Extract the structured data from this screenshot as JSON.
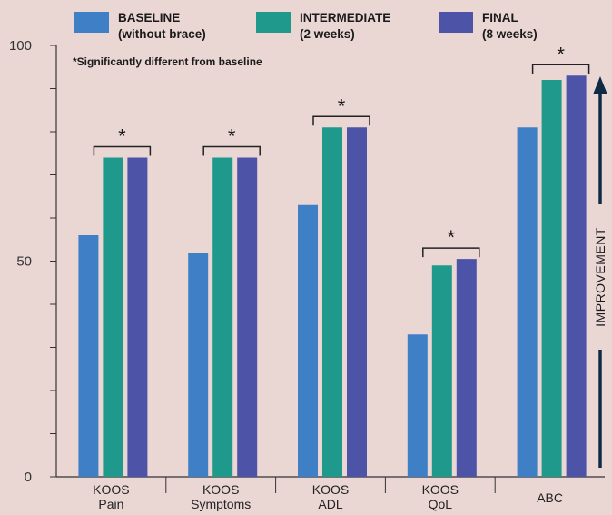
{
  "chart_data": {
    "type": "bar",
    "categories": [
      [
        "KOOS",
        "Pain"
      ],
      [
        "KOOS",
        "Symptoms"
      ],
      [
        "KOOS",
        "ADL"
      ],
      [
        "KOOS",
        "QoL"
      ],
      [
        "ABC"
      ]
    ],
    "series": [
      {
        "name": [
          "BASELINE",
          "(without brace)"
        ],
        "color": "#3f7fc6",
        "values": [
          56,
          52,
          63,
          33,
          81
        ]
      },
      {
        "name": [
          "INTERMEDIATE",
          "(2 weeks)"
        ],
        "color": "#1f998c",
        "values": [
          74,
          74,
          81,
          49,
          92
        ]
      },
      {
        "name": [
          "FINAL",
          "(8 weeks)"
        ],
        "color": "#4d54a8",
        "values": [
          74,
          74,
          81,
          50.5,
          93
        ]
      }
    ],
    "ylim": [
      0,
      100
    ],
    "yticks": [
      0,
      50,
      100
    ],
    "significance_marker": "*",
    "significant_groups": [
      0,
      1,
      2,
      3,
      4
    ],
    "note": "*Significantly different from baseline",
    "arrow_label": "IMPROVEMENT",
    "legend_position": "top"
  }
}
